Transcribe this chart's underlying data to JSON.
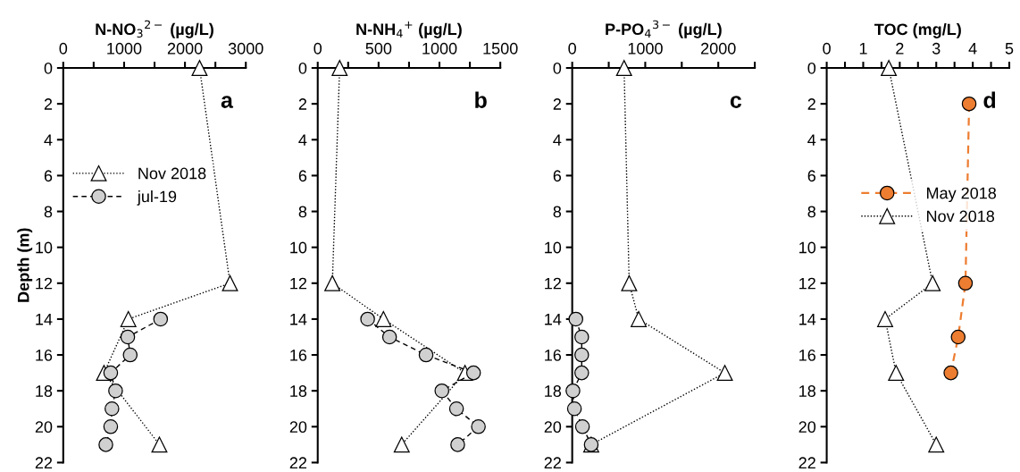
{
  "chart_data": [
    {
      "type": "line",
      "xlabel": "N-NO$_{3}$$^{2−}$ (µg/L)",
      "ylabel": "Depth (m)",
      "annotations": [
        "a"
      ],
      "legend": "left",
      "xlim": [
        0,
        3000
      ],
      "xticks": [
        0,
        {
          "value": 500,
          "label": null
        },
        1000,
        {
          "value": 1500,
          "label": null
        },
        2000,
        {
          "value": 2500,
          "label": null
        },
        3000
      ],
      "ylim": [
        22,
        0
      ],
      "yticks": [
        0,
        2,
        4,
        6,
        8,
        10,
        12,
        14,
        16,
        18,
        20,
        22
      ],
      "series": [
        {
          "name": "Nov 2018",
          "color": "#ffffff",
          "marker": "triangle",
          "line_style": "dotted",
          "x": [
            2240,
            2740,
            1070,
            670,
            1580
          ],
          "values": [
            0,
            12,
            14,
            17,
            21
          ]
        },
        {
          "name": "jul-19",
          "color": "#d0d0d0",
          "marker": "circle",
          "line_style": "dashed",
          "x": [
            1600,
            1060,
            1100,
            780,
            860,
            800,
            780,
            700
          ],
          "values": [
            14,
            15,
            16,
            17,
            18,
            19,
            20,
            21
          ]
        }
      ]
    },
    {
      "type": "line",
      "xlabel": "N-NH$_{4}$$^{+}$ (µg/L)",
      "annotations": [
        "b"
      ],
      "xlim": [
        0,
        1500
      ],
      "xticks": [
        0,
        {
          "value": 250,
          "label": null
        },
        500,
        {
          "value": 750,
          "label": null
        },
        1000,
        {
          "value": 1250,
          "label": null
        },
        1500
      ],
      "ylim": [
        22,
        0
      ],
      "yticks": [
        0,
        2,
        4,
        6,
        8,
        10,
        12,
        14,
        16,
        18,
        20,
        22
      ],
      "series": [
        {
          "color": "#ffffff",
          "marker": "triangle",
          "line_style": "dotted",
          "x": [
            180,
            120,
            540,
            1210,
            690
          ],
          "values": [
            0,
            12,
            14,
            17,
            21
          ]
        },
        {
          "color": "#d0d0d0",
          "marker": "circle",
          "line_style": "dashed",
          "x": [
            410,
            590,
            890,
            1280,
            1020,
            1140,
            1320,
            1150
          ],
          "values": [
            14,
            15,
            16,
            17,
            18,
            19,
            20,
            21
          ]
        }
      ]
    },
    {
      "type": "line",
      "xlabel": "P-PO$_{4}$$^{3−}$ (µg/L)",
      "annotations": [
        "c"
      ],
      "xlim": [
        0,
        2500
      ],
      "xticks": [
        0,
        {
          "value": 500,
          "label": null
        },
        1000,
        {
          "value": 1500,
          "label": null
        },
        2000,
        {
          "value": 2500,
          "label": null
        }
      ],
      "ylim": [
        22,
        0
      ],
      "yticks": [
        0,
        2,
        4,
        6,
        8,
        10,
        12,
        14,
        16,
        18,
        20,
        22
      ],
      "series": [
        {
          "color": "#ffffff",
          "marker": "triangle",
          "line_style": "dotted",
          "x": [
            710,
            780,
            910,
            2090,
            260
          ],
          "values": [
            0,
            12,
            14,
            17,
            21
          ]
        },
        {
          "color": "#d0d0d0",
          "marker": "circle",
          "line_style": "dashed",
          "x": [
            50,
            130,
            130,
            130,
            10,
            30,
            140,
            260
          ],
          "values": [
            14,
            15,
            16,
            17,
            18,
            19,
            20,
            21
          ]
        }
      ]
    },
    {
      "type": "line",
      "xlabel": "TOC (mg/L)",
      "annotations": [
        "d"
      ],
      "legend": "center",
      "xlim": [
        0,
        5
      ],
      "xticks": [
        0,
        {
          "value": 0.5,
          "label": null
        },
        1,
        {
          "value": 1.5,
          "label": null
        },
        2,
        {
          "value": 2.5,
          "label": null
        },
        3,
        {
          "value": 3.5,
          "label": null
        },
        4,
        {
          "value": 4.5,
          "label": null
        },
        5
      ],
      "ylim": [
        22,
        0
      ],
      "yticks": [
        0,
        2,
        4,
        6,
        8,
        10,
        12,
        14,
        16,
        18,
        20,
        22
      ],
      "series": [
        {
          "name": "May 2018",
          "color": "#ed7d31",
          "marker": "circle",
          "line_style": "dashed",
          "x": [
            3.9,
            3.8,
            3.6,
            3.4
          ],
          "values": [
            2,
            12,
            15,
            17
          ]
        },
        {
          "name": "Nov 2018",
          "color": "#ffffff",
          "marker": "triangle",
          "line_style": "dotted",
          "x": [
            1.7,
            2.9,
            1.6,
            1.9,
            3.0
          ],
          "values": [
            0,
            12,
            14,
            17,
            21
          ]
        }
      ]
    }
  ]
}
